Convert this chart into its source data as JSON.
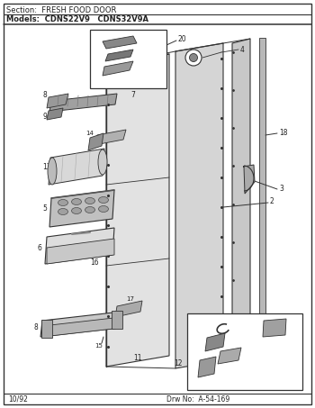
{
  "title_section": "Section:  FRESH FOOD DOOR",
  "title_models": "Models:  CDNS22V9   CDNS32V9A",
  "footer_left": "10/92",
  "footer_right": "Drw No:  A-54-169",
  "bg_color": "#ffffff",
  "border_color": "#333333",
  "line_color": "#333333",
  "text_color": "#222222",
  "fig_width": 3.5,
  "fig_height": 4.53,
  "dpi": 100
}
